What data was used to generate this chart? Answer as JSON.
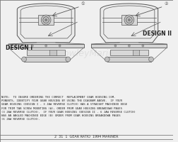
{
  "background_color": "#f0f0f0",
  "design1_label": "DESIGN I",
  "design2_label": "DESIGN II",
  "note_text": "NOTE:  TO INSURE ORDERING THE CORRECT  REPLACEMENT GEAR HOUSING COM-\nPONENTS, IDENTIFY YOUR GEAR HOUSING BY USING THE DIAGRAM ABOVE.  IF YOUR\nGEAR HOUSING (DESIGN I - 3 JAW REVERSE CLUTCH) HAS A STRAIGHT MACHINED EDGE\nFOR TRIM TAB SCREW MOUNTING (A), ORDER FROM GEAR HOUSING BREAKDOWN PAGES\n(3 JAW REVERSE CLUTCH).  IF YOUR GEAR HOUSING (DESIGN II - 6 JAW REVERSE CLUTCH)\nHAS AN ANGLED MACHINED EDGE (B) ORDER FROM GEAR HOUSING BREAKDOWN PAGES\n(6 JAW REVERSE CLUTCH).",
  "watermark": "CrowleyMarine",
  "bottom_line": "2  31  1  GEAR RATIO  1994 MARINER",
  "face_color": "#e8e8e8",
  "edge_color": "#555555",
  "label_color": "#222222"
}
